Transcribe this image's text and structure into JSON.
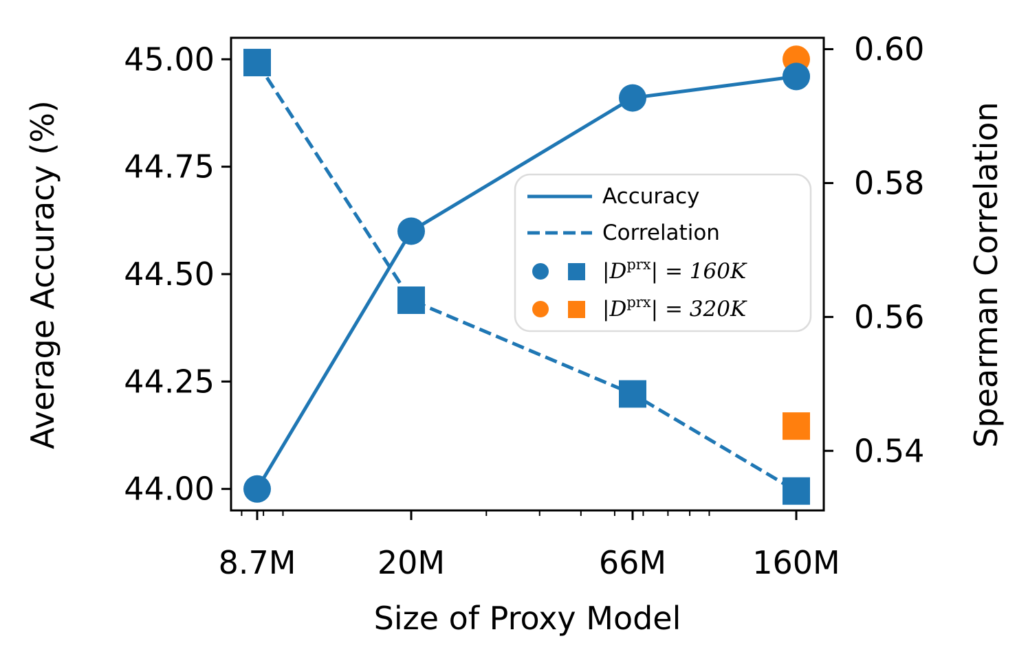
{
  "chart_data": {
    "type": "line",
    "xlabel": "Size of Proxy Model",
    "ylabel_left": "Average Accuracy (%)",
    "ylabel_right": "Spearman Correlation",
    "x_scale": "log",
    "x": [
      8.7,
      20,
      66,
      160
    ],
    "x_tick_labels": [
      "8.7M",
      "20M",
      "66M",
      "160M"
    ],
    "ylim_left": [
      43.95,
      45.05
    ],
    "ylim_right": [
      0.5311,
      0.6017
    ],
    "yticks_left": [
      "44.00",
      "44.25",
      "44.50",
      "44.75",
      "45.00"
    ],
    "yticks_right": [
      "0.54",
      "0.56",
      "0.58",
      "0.60"
    ],
    "series": [
      {
        "name": "Accuracy",
        "axis": "left",
        "style": "solid",
        "marker": "circle",
        "color": "#1f77b4",
        "values": [
          44.0,
          44.6,
          44.91,
          44.96
        ]
      },
      {
        "name": "Correlation",
        "axis": "right",
        "style": "dashed",
        "marker": "square",
        "color": "#1f77b4",
        "values": [
          0.598,
          0.5625,
          0.5485,
          0.534
        ]
      }
    ],
    "extra_points": [
      {
        "name": "Accuracy |D^prx| = 320K",
        "axis": "left",
        "marker": "circle",
        "color": "#ff7f0e",
        "x": 160,
        "y": 45.0
      },
      {
        "name": "Correlation |D^prx| = 320K",
        "axis": "right",
        "marker": "square",
        "color": "#ff7f0e",
        "x": 160,
        "y": 0.5437
      }
    ],
    "legend": {
      "position": "center-right",
      "entries": [
        {
          "label": "Accuracy",
          "kind": "solid-line"
        },
        {
          "label": "Correlation",
          "kind": "dashed-line"
        },
        {
          "label_prefix": "|",
          "label_script": "D",
          "label_sup": "prx",
          "label_mid": "| = ",
          "label_value": "160",
          "label_unit": "K",
          "color": "#1f77b4"
        },
        {
          "label_prefix": "|",
          "label_script": "D",
          "label_sup": "prx",
          "label_mid": "| = ",
          "label_value": "320",
          "label_unit": "K",
          "color": "#ff7f0e"
        }
      ]
    }
  }
}
